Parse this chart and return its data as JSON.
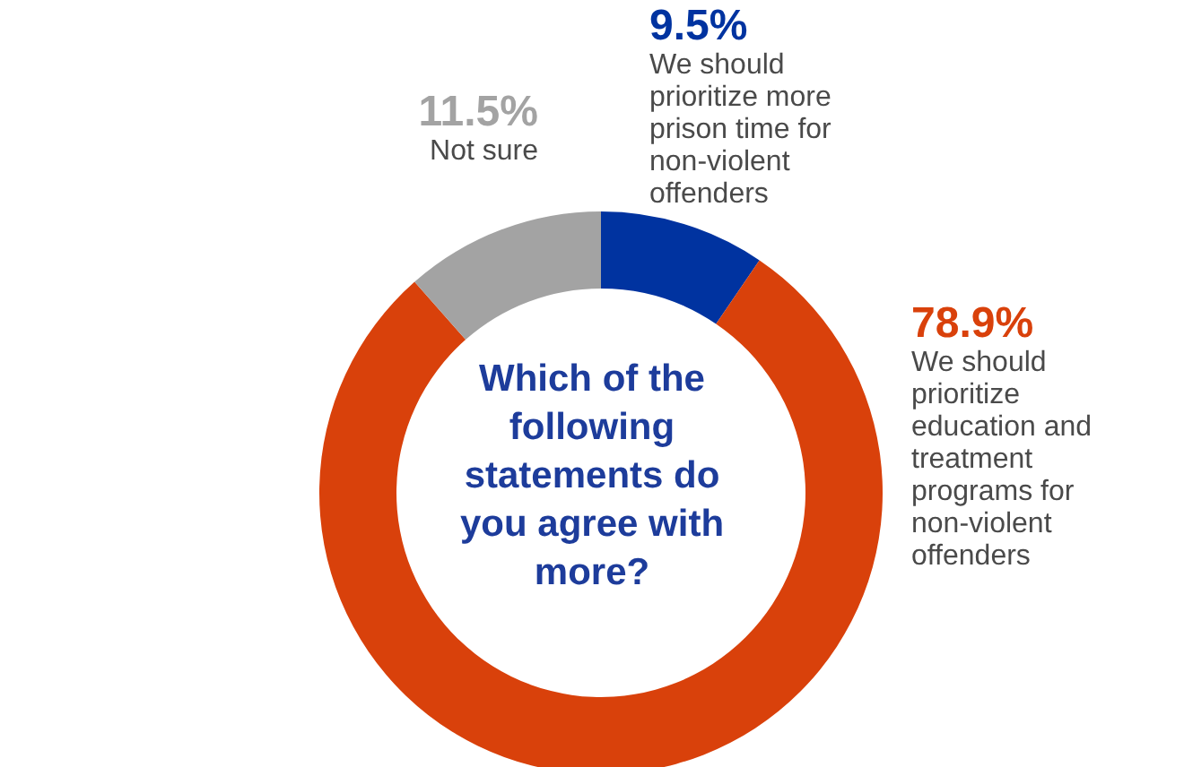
{
  "chart_data": {
    "type": "donut",
    "title": "Which of the following statements do you agree with more?",
    "categories": [
      "We should prioritize more prison time for non-violent offenders",
      "We should prioritize education and treatment programs for non-violent offenders",
      "Not sure"
    ],
    "values": [
      9.5,
      78.9,
      11.5
    ],
    "colors": [
      "#0033a0",
      "#d9410b",
      "#a3a3a3"
    ],
    "value_labels": [
      "9.5%",
      "78.9%",
      "11.5%"
    ]
  }
}
